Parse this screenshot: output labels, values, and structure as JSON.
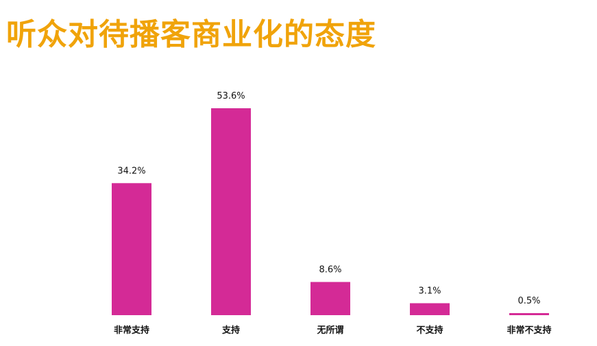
{
  "title": "听众对待播客商业化的态度",
  "colors": {
    "title": "#F0A30A",
    "bar": "#D42A96"
  },
  "chart_data": {
    "type": "bar",
    "categories": [
      "非常支持",
      "支持",
      "无所谓",
      "不支持",
      "非常不支持"
    ],
    "values": [
      34.2,
      53.6,
      8.6,
      3.1,
      0.5
    ],
    "value_labels": [
      "34.2%",
      "53.6%",
      "8.6%",
      "3.1%",
      "0.5%"
    ],
    "unit": "%",
    "ylim": [
      0,
      53.6
    ],
    "grid": false,
    "legend": "none"
  }
}
